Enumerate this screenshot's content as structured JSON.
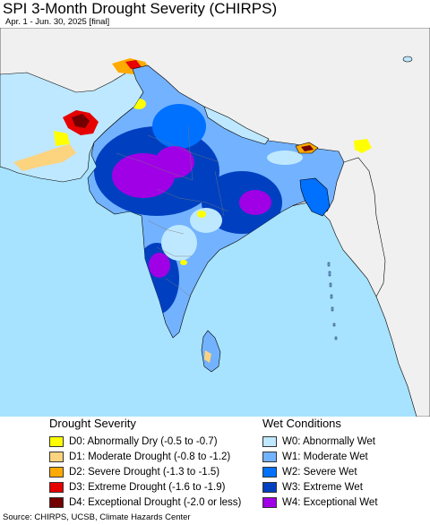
{
  "header": {
    "title": "SPI 3-Month Drought Severity (CHIRPS)",
    "subtitle": "Apr. 1 - Jun. 30, 2025 [final]"
  },
  "legend": {
    "drought": {
      "heading": "Drought Severity",
      "items": [
        {
          "label": "D0: Abnormally Dry (-0.5 to -0.7)",
          "color": "#ffff00"
        },
        {
          "label": "D1: Moderate Drought (-0.8 to -1.2)",
          "color": "#fcd37f"
        },
        {
          "label": "D2: Severe Drought (-1.3 to -1.5)",
          "color": "#ffaa00"
        },
        {
          "label": "D3: Extreme Drought (-1.6 to -1.9)",
          "color": "#e60000"
        },
        {
          "label": "D4: Exceptional Drought (-2.0 or less)",
          "color": "#730000"
        }
      ]
    },
    "wet": {
      "heading": "Wet Conditions",
      "items": [
        {
          "label": "W0: Abnormally Wet",
          "color": "#bee8ff"
        },
        {
          "label": "W1: Moderate Wet",
          "color": "#73b2ff"
        },
        {
          "label": "W2: Severe Wet",
          "color": "#0070ff"
        },
        {
          "label": "W3: Extreme Wet",
          "color": "#0040c0"
        },
        {
          "label": "W4: Exceptional Wet",
          "color": "#a000e6"
        }
      ]
    }
  },
  "colors": {
    "sea": "#a7e3ff",
    "land_outside": "#f0f0f0",
    "border": "#000000"
  },
  "source": "Source: CHIRPS, UCSB, Climate Hazards Center"
}
